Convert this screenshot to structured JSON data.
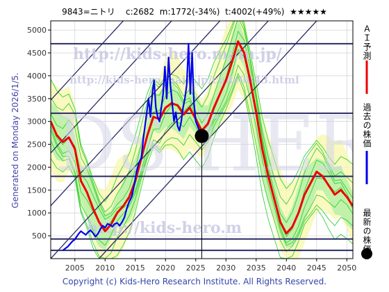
{
  "header": {
    "ticker": "9843=ニトリ",
    "current": "c:2682",
    "min": "m:1772(-34%)",
    "target": "t:4002(+49%)",
    "stars": "★★★★★"
  },
  "footer": {
    "copyright": "Copyright (c) Kids-Hero Research Institute. All Rights Reserved."
  },
  "side_note": "Generated on Monday 2026/1/5.",
  "watermark": {
    "url1": "http://kids-hero.main.jp/",
    "url2": "http://kids-hero.main.jp/code9843.html",
    "url3": "http://kids-hero.m",
    "big": "KIDS HERO"
  },
  "colors": {
    "past": "#0000ee",
    "forecast": "#ee0000",
    "band_green": "#22cc22",
    "band_fill": "#b8f0a8",
    "band_yellow": "#f8f8b0",
    "hline": "#2a2a66",
    "diag": "#2a2a66",
    "grid": "#c8c8c8",
    "marker": "#000000"
  },
  "chart_data": {
    "type": "line",
    "title": "9843=ニトリ  c:2682  m:1772(-34%)  t:4002(+49%)",
    "xlim": [
      2001,
      2051
    ],
    "ylim": [
      0,
      5200
    ],
    "xticks": [
      2005,
      2010,
      2015,
      2020,
      2025,
      2030,
      2035,
      2040,
      2045,
      2050
    ],
    "yticks": [
      500,
      1000,
      1500,
      2000,
      2500,
      3000,
      3500,
      4000,
      4500,
      5000
    ],
    "hlines": [
      180,
      430,
      1800,
      3180,
      4700
    ],
    "current_marker": {
      "x": 2026.0,
      "y": 2682
    },
    "legend": [
      {
        "label": "ＡＩ予測",
        "color": "#ee0000"
      },
      {
        "label": "過去の株価",
        "color": "#0000ee"
      },
      {
        "label": "最新の株価",
        "color": "#000000"
      }
    ],
    "series": [
      {
        "name": "過去の株価",
        "x": [
          2003.0,
          2003.4,
          2003.8,
          2004.2,
          2004.6,
          2005.0,
          2005.3,
          2005.6,
          2006.0,
          2006.4,
          2006.8,
          2007.2,
          2007.6,
          2008.0,
          2008.4,
          2008.8,
          2009.2,
          2009.6,
          2010.0,
          2010.4,
          2010.8,
          2011.2,
          2011.6,
          2012.0,
          2012.4,
          2012.8,
          2013.2,
          2013.6,
          2014.0,
          2014.4,
          2014.8,
          2015.2,
          2015.6,
          2016.0,
          2016.3,
          2016.6,
          2016.9,
          2017.2,
          2017.5,
          2017.8,
          2018.1,
          2018.4,
          2018.7,
          2019.0,
          2019.3,
          2019.6,
          2019.9,
          2020.2,
          2020.5,
          2020.8,
          2021.1,
          2021.4,
          2021.7,
          2022.0,
          2022.3,
          2022.6,
          2022.9,
          2023.2,
          2023.5,
          2023.8,
          2024.1,
          2024.4,
          2024.7,
          2025.0,
          2025.3,
          2025.6,
          2026.0
        ],
        "y": [
          180,
          220,
          260,
          320,
          380,
          420,
          480,
          540,
          600,
          560,
          520,
          580,
          620,
          560,
          480,
          540,
          640,
          720,
          680,
          760,
          740,
          700,
          760,
          780,
          720,
          800,
          900,
          1100,
          1250,
          1350,
          1600,
          1900,
          2100,
          2200,
          2600,
          2900,
          3200,
          3500,
          3100,
          3600,
          3900,
          3300,
          3100,
          3000,
          3300,
          3600,
          4200,
          3500,
          4400,
          3800,
          3400,
          3000,
          3200,
          2900,
          2800,
          3000,
          3300,
          3500,
          3800,
          4700,
          3600,
          4500,
          3400,
          3000,
          2900,
          2800,
          2682
        ]
      },
      {
        "name": "ＡＩ予測",
        "x": [
          2001,
          2002,
          2003,
          2004,
          2005,
          2006,
          2007,
          2008,
          2009,
          2010,
          2011,
          2012,
          2013,
          2014,
          2015,
          2016,
          2017,
          2018,
          2019,
          2020,
          2021,
          2022,
          2023,
          2024,
          2025,
          2026,
          2027,
          2028,
          2029,
          2030,
          2031,
          2032,
          2033,
          2034,
          2035,
          2036,
          2037,
          2038,
          2039,
          2040,
          2041,
          2042,
          2043,
          2044,
          2045,
          2046,
          2047,
          2048,
          2049,
          2050,
          2051
        ],
        "y": [
          3000,
          2700,
          2550,
          2650,
          2400,
          1700,
          1450,
          1100,
          800,
          600,
          750,
          1000,
          1150,
          1350,
          1700,
          2200,
          2700,
          3100,
          3050,
          3300,
          3400,
          3350,
          3150,
          3300,
          3050,
          2800,
          2950,
          3300,
          3600,
          3900,
          4300,
          4750,
          4500,
          3900,
          3200,
          2400,
          1800,
          1300,
          800,
          550,
          700,
          1000,
          1400,
          1650,
          1900,
          1800,
          1600,
          1400,
          1500,
          1350,
          1150
        ]
      }
    ]
  }
}
